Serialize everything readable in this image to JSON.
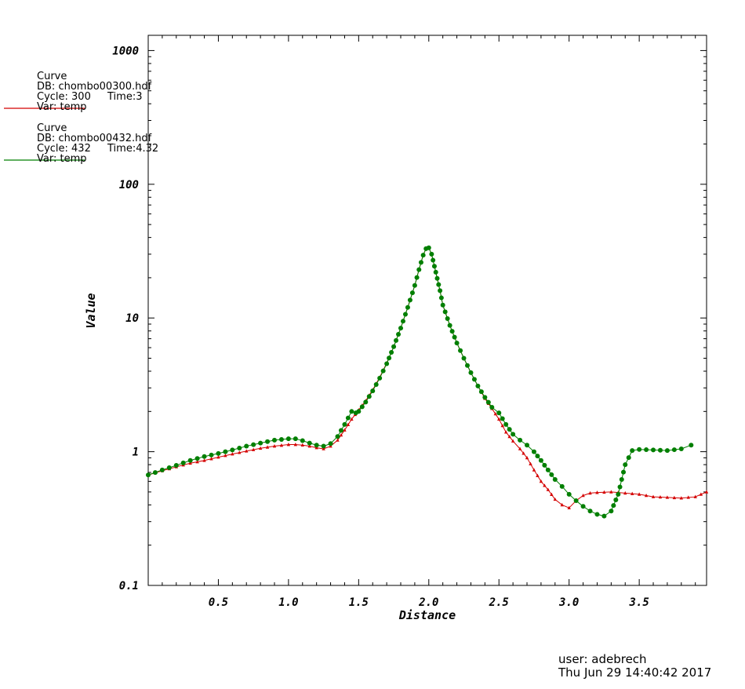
{
  "legend": [
    {
      "title": "Curve",
      "db": "DB: chombo00300.hdf",
      "cycle": "Cycle: 300",
      "time": "Time:3",
      "var": "Var: temp",
      "color": "#d40000"
    },
    {
      "title": "Curve",
      "db": "DB: chombo00432.hdf",
      "cycle": "Cycle: 432",
      "time": "Time:4.32",
      "var": "Var: temp",
      "color": "#007f00"
    }
  ],
  "footer": {
    "user": "user: adebrech",
    "date": "Thu Jun 29 14:40:42 2017"
  },
  "chart_data": {
    "type": "line",
    "xlabel": "Distance",
    "ylabel": "Value",
    "yscale": "log",
    "xlim": [
      0.0,
      3.98
    ],
    "ylim": [
      0.1,
      1300
    ],
    "x_ticks": [
      "0.5",
      "1.0",
      "1.5",
      "2.0",
      "2.5",
      "3.0",
      "3.5"
    ],
    "y_ticks": [
      "0.1",
      "1",
      "10",
      "100",
      "1000"
    ],
    "grid": false,
    "series": [
      {
        "color": "#d40000",
        "marker": "triangle",
        "x": [
          0.0,
          0.1,
          0.2,
          0.3,
          0.4,
          0.5,
          0.6,
          0.7,
          0.8,
          0.9,
          1.0,
          1.05,
          1.1,
          1.15,
          1.2,
          1.25,
          1.3,
          1.35,
          1.4,
          1.45,
          1.5,
          1.55,
          1.6,
          1.65,
          1.7,
          1.75,
          1.8,
          1.85,
          1.9,
          1.93,
          1.96,
          1.98,
          2.0,
          2.02,
          2.05,
          2.08,
          2.1,
          2.15,
          2.2,
          2.25,
          2.3,
          2.35,
          2.4,
          2.45,
          2.5,
          2.55,
          2.6,
          2.65,
          2.7,
          2.75,
          2.8,
          2.85,
          2.9,
          2.95,
          3.0,
          3.05,
          3.1,
          3.15,
          3.2,
          3.3,
          3.4,
          3.5,
          3.6,
          3.7,
          3.8,
          3.9,
          3.98
        ],
        "y": [
          0.67,
          0.72,
          0.77,
          0.82,
          0.86,
          0.91,
          0.96,
          1.01,
          1.06,
          1.1,
          1.13,
          1.13,
          1.12,
          1.1,
          1.07,
          1.05,
          1.1,
          1.22,
          1.45,
          1.75,
          2.05,
          2.4,
          2.9,
          3.6,
          4.6,
          6.1,
          8.4,
          12.0,
          17.5,
          23.0,
          29.5,
          33.0,
          33.5,
          30.0,
          22.0,
          16.0,
          12.5,
          8.8,
          6.5,
          5.0,
          3.9,
          3.1,
          2.5,
          2.1,
          1.75,
          1.4,
          1.2,
          1.05,
          0.9,
          0.73,
          0.6,
          0.52,
          0.44,
          0.4,
          0.38,
          0.43,
          0.47,
          0.49,
          0.495,
          0.5,
          0.49,
          0.48,
          0.46,
          0.455,
          0.45,
          0.46,
          0.5
        ]
      },
      {
        "color": "#007f00",
        "marker": "circle",
        "x": [
          0.0,
          0.1,
          0.2,
          0.3,
          0.4,
          0.5,
          0.6,
          0.7,
          0.8,
          0.9,
          1.0,
          1.05,
          1.1,
          1.15,
          1.2,
          1.25,
          1.3,
          1.35,
          1.4,
          1.45,
          1.48,
          1.5,
          1.55,
          1.6,
          1.65,
          1.7,
          1.75,
          1.8,
          1.85,
          1.9,
          1.93,
          1.96,
          1.98,
          2.0,
          2.02,
          2.05,
          2.08,
          2.1,
          2.15,
          2.2,
          2.25,
          2.3,
          2.35,
          2.4,
          2.45,
          2.5,
          2.55,
          2.6,
          2.65,
          2.7,
          2.75,
          2.8,
          2.85,
          2.9,
          2.95,
          3.0,
          3.05,
          3.1,
          3.15,
          3.2,
          3.25,
          3.3,
          3.35,
          3.4,
          3.45,
          3.5,
          3.6,
          3.7,
          3.8,
          3.87
        ],
        "y": [
          0.67,
          0.73,
          0.79,
          0.86,
          0.92,
          0.97,
          1.03,
          1.1,
          1.16,
          1.22,
          1.25,
          1.25,
          1.21,
          1.16,
          1.12,
          1.1,
          1.15,
          1.3,
          1.6,
          2.0,
          1.95,
          2.0,
          2.35,
          2.85,
          3.55,
          4.55,
          6.1,
          8.4,
          12.0,
          17.5,
          23.0,
          29.5,
          33.0,
          33.5,
          30.0,
          22.0,
          16.0,
          12.5,
          8.8,
          6.5,
          5.0,
          3.9,
          3.1,
          2.55,
          2.15,
          1.95,
          1.6,
          1.35,
          1.22,
          1.12,
          1.0,
          0.86,
          0.73,
          0.62,
          0.55,
          0.48,
          0.43,
          0.39,
          0.36,
          0.34,
          0.33,
          0.36,
          0.48,
          0.8,
          1.02,
          1.04,
          1.03,
          1.02,
          1.05,
          1.12
        ]
      }
    ]
  }
}
